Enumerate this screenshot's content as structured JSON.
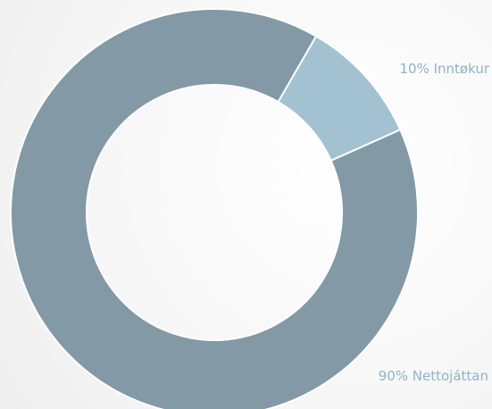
{
  "chart_data": {
    "type": "donut",
    "slices": [
      {
        "label": "Nettojáttan",
        "value": 90,
        "display": "90% Nettojáttan",
        "color": "#8399a6"
      },
      {
        "label": "Inntøkur",
        "value": 10,
        "display": "10% Inntøkur",
        "color": "#a2c2d1"
      }
    ],
    "title": "",
    "legend": "none",
    "label_color": "#8fb4c5",
    "separator_color": "#ffffff"
  }
}
